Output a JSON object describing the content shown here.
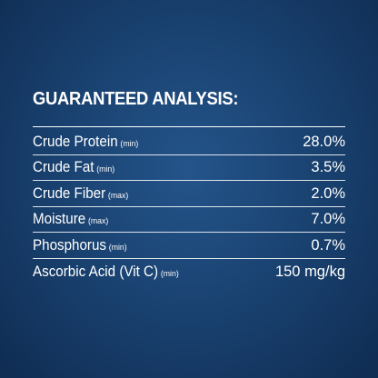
{
  "header": {
    "title": "GUARANTEED ANALYSIS:"
  },
  "table": {
    "rows": [
      [
        "Crude Protein",
        "(min)",
        "28.0%"
      ],
      [
        "Crude Fat",
        "(min)",
        "3.5%"
      ],
      [
        "Crude Fiber",
        "(max)",
        "2.0%"
      ],
      [
        "Moisture",
        "(max)",
        "7.0%"
      ],
      [
        "Phosphorus",
        "(min)",
        "0.7%"
      ],
      [
        "Ascorbic Acid (Vit C)",
        "(min)",
        "150 mg/kg"
      ]
    ]
  }
}
